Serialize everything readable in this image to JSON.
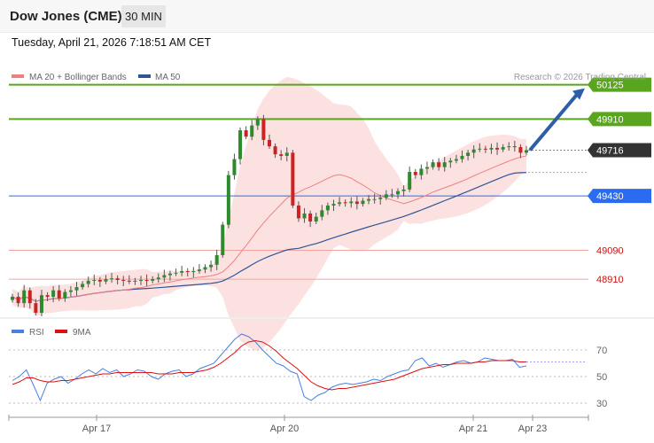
{
  "header": {
    "title": "Dow Jones (CME)",
    "timeframe": "30 MIN"
  },
  "timestamp": "Tuesday, April 21, 2026 7:18:51 AM CET",
  "credit": "Research © 2026 Trading Central",
  "colors": {
    "resistance": "#5aa51e",
    "support": "#f4a3a3",
    "pivot": "#2b6bf0",
    "current": "#333333",
    "ma20": "#f08080",
    "ma50": "#2f5597",
    "band_fill": "#fcdcdc",
    "arrow": "#2e5ea8",
    "rsi": "#4a7fe0",
    "rsi_ma": "#dd1111",
    "candle_up": "#2d8a2d",
    "candle_down": "#cc2222"
  },
  "chart_data": [
    {
      "type": "candlestick",
      "title": "Dow Jones (CME)",
      "legend": [
        {
          "name": "MA 20 + Bollinger Bands",
          "color": "#f08080"
        },
        {
          "name": "MA 50",
          "color": "#2f5597"
        }
      ],
      "legend_position": "top-left",
      "x_ticks": [
        "Apr 17",
        "Apr 20",
        "Apr 21",
        "Apr 23"
      ],
      "ylim": [
        48700,
        50250
      ],
      "levels": [
        {
          "value": 50125,
          "label": "50125",
          "kind": "resistance"
        },
        {
          "value": 49910,
          "label": "49910",
          "kind": "resistance"
        },
        {
          "value": 49716,
          "label": "49716",
          "kind": "current"
        },
        {
          "value": 49430,
          "label": "49430",
          "kind": "pivot"
        },
        {
          "value": 49090,
          "label": "49090",
          "kind": "support"
        },
        {
          "value": 48910,
          "label": "48910",
          "kind": "support"
        }
      ],
      "forecast_arrow": {
        "from": 49716,
        "to": 50125
      },
      "price_path": [
        48800,
        48760,
        48840,
        48760,
        48700,
        48810,
        48800,
        48840,
        48790,
        48830,
        48840,
        48860,
        48880,
        48900,
        48905,
        48895,
        48910,
        48915,
        48905,
        48900,
        48895,
        48900,
        48905,
        48900,
        48910,
        48920,
        48935,
        48945,
        48950,
        48960,
        48955,
        48960,
        48970,
        48985,
        49000,
        49060,
        49250,
        49560,
        49660,
        49840,
        49800,
        49870,
        49910,
        49780,
        49740,
        49690,
        49680,
        49700,
        49370,
        49290,
        49320,
        49270,
        49300,
        49340,
        49370,
        49380,
        49390,
        49385,
        49395,
        49380,
        49400,
        49410,
        49410,
        49420,
        49440,
        49440,
        49460,
        49470,
        49580,
        49560,
        49600,
        49610,
        49640,
        49610,
        49640,
        49650,
        49660,
        49680,
        49700,
        49720,
        49725,
        49720,
        49730,
        49720,
        49735,
        49740,
        49735,
        49700,
        49716
      ]
    },
    {
      "type": "line",
      "title": "RSI",
      "legend": [
        {
          "name": "RSI",
          "color": "#4a7fe0"
        },
        {
          "name": "9MA",
          "color": "#dd1111"
        }
      ],
      "ylim": [
        20,
        80
      ],
      "y_ticks": [
        "70",
        "50",
        "30"
      ],
      "rsi": [
        47,
        50,
        55,
        44,
        32,
        45,
        48,
        50,
        45,
        48,
        52,
        55,
        52,
        56,
        53,
        55,
        50,
        52,
        55,
        54,
        50,
        48,
        52,
        54,
        55,
        50,
        52,
        56,
        58,
        60,
        66,
        72,
        78,
        82,
        80,
        76,
        70,
        65,
        60,
        58,
        54,
        52,
        35,
        32,
        36,
        38,
        42,
        44,
        45,
        44,
        45,
        46,
        48,
        47,
        50,
        52,
        54,
        55,
        62,
        64,
        58,
        60,
        57,
        59,
        61,
        62,
        60,
        61,
        64,
        63,
        62,
        62,
        63,
        57,
        58
      ],
      "rsi_ma": [
        44,
        46,
        49,
        49,
        47,
        46,
        46,
        47,
        47,
        48,
        49,
        50,
        51,
        52,
        52,
        53,
        53,
        53,
        53,
        53,
        53,
        52,
        52,
        52,
        53,
        53,
        53,
        54,
        55,
        57,
        60,
        64,
        68,
        73,
        76,
        77,
        76,
        73,
        69,
        64,
        60,
        56,
        51,
        46,
        43,
        41,
        40,
        41,
        41,
        42,
        43,
        44,
        45,
        46,
        47,
        48,
        50,
        52,
        54,
        56,
        57,
        58,
        59,
        59,
        60,
        60,
        60,
        61,
        61,
        62,
        62,
        62,
        62,
        61,
        61
      ]
    }
  ]
}
